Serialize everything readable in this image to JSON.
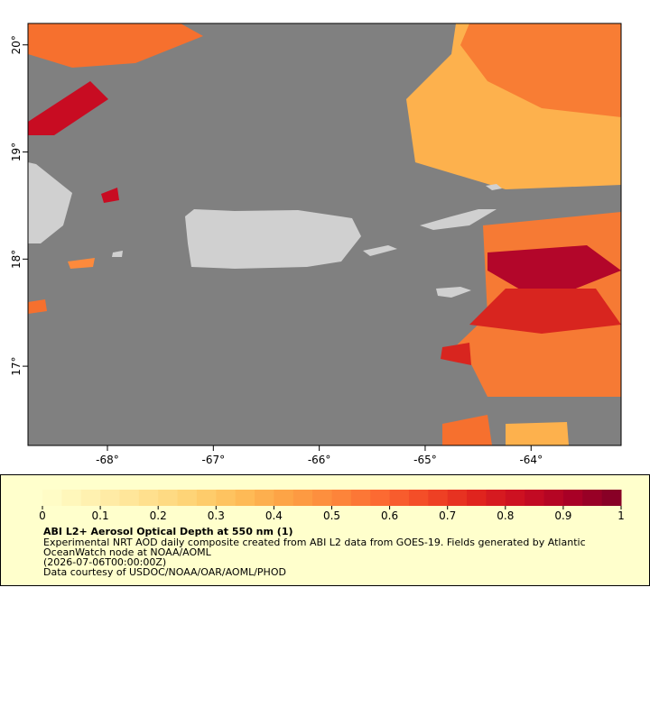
{
  "map": {
    "xlim": [
      -68.75,
      -63.15
    ],
    "ylim": [
      16.26,
      20.2
    ],
    "xticks": [
      {
        "value": -68,
        "label": "-68°"
      },
      {
        "value": -67,
        "label": "-67°"
      },
      {
        "value": -66,
        "label": "-66°"
      },
      {
        "value": -65,
        "label": "-65°"
      },
      {
        "value": -64,
        "label": "-64°"
      }
    ],
    "yticks": [
      {
        "value": 17,
        "label": "17°"
      },
      {
        "value": 18,
        "label": "18°"
      },
      {
        "value": 19,
        "label": "19°"
      },
      {
        "value": 20,
        "label": "20°"
      }
    ],
    "ocean_color": "#808080",
    "land_color": "#d0d0d0"
  },
  "legend": {
    "lim": [
      0,
      1
    ],
    "ticks": [
      0,
      0.1,
      0.2,
      0.3,
      0.4,
      0.5,
      0.6,
      0.7,
      0.8,
      0.9,
      1
    ],
    "colors": [
      "#ffffcc",
      "#fff1b0",
      "#ffe394",
      "#fed477",
      "#febf5a",
      "#fda446",
      "#fd8a3c",
      "#fc6a32",
      "#f24726",
      "#e0241e",
      "#c80c22",
      "#a80026",
      "#800026"
    ],
    "title": "ABI L2+ Aerosol Optical Depth at 550 nm (1)",
    "lines": [
      "Experimental NRT AOD daily composite created from ABI L2 data from GOES-19. Fields generated by Atlantic",
      "OceanWatch node at NOAA/AOML",
      "(2026-07-06T00:00:00Z)",
      "Data courtesy of USDOC/NOAA/OAR/AOML/PHOD"
    ]
  }
}
